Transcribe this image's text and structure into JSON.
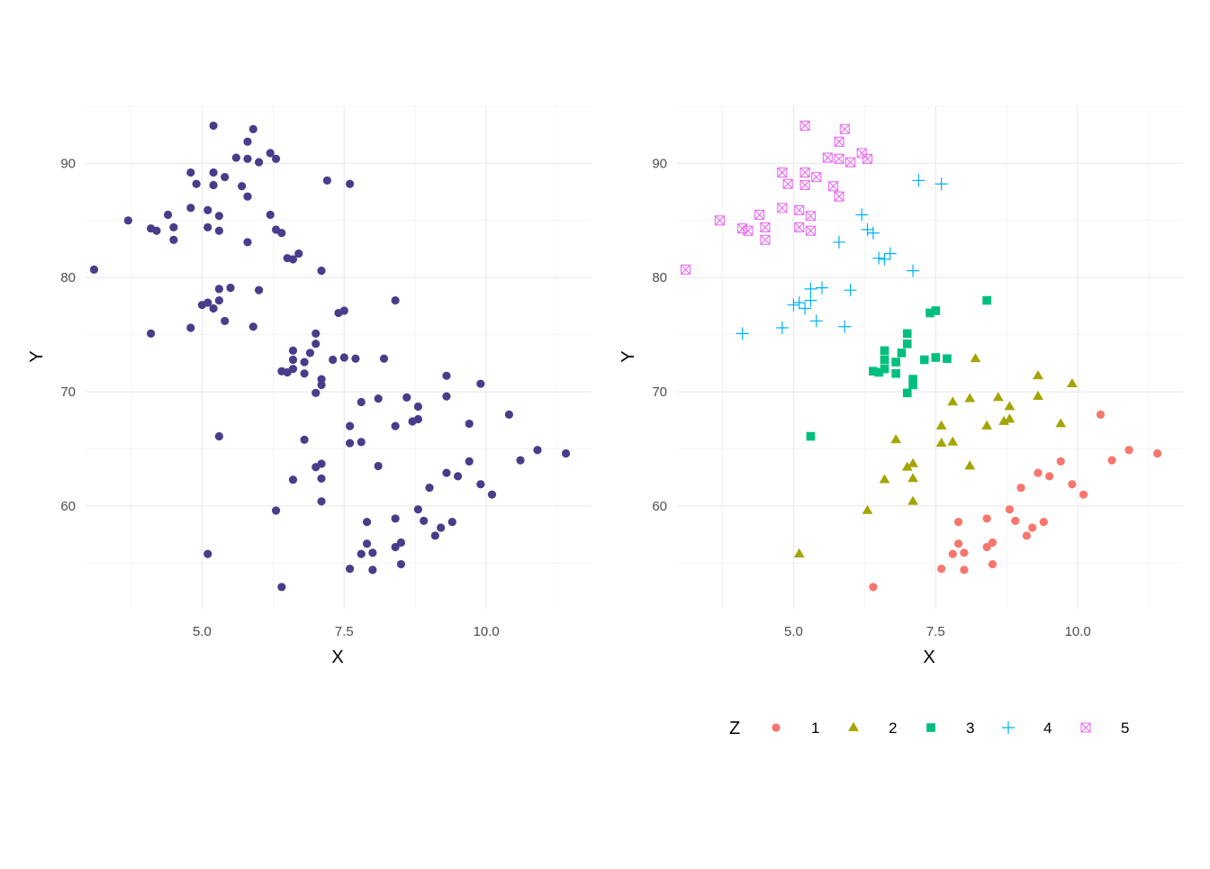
{
  "chart_data": [
    {
      "type": "scatter",
      "panel": "left",
      "xlabel": "X",
      "ylabel": "Y",
      "xlim": [
        2.95,
        11.85
      ],
      "ylim": [
        51.0,
        95.0
      ],
      "xticks": [
        5.0,
        7.5,
        10.0
      ],
      "xtick_labels": [
        "5.0",
        "7.5",
        "10.0"
      ],
      "yticks": [
        60,
        70,
        80,
        90
      ],
      "ytick_labels": [
        "60",
        "70",
        "80",
        "90"
      ],
      "grid": true,
      "point_color": "#483d8b"
    },
    {
      "type": "scatter",
      "panel": "right",
      "xlabel": "X",
      "ylabel": "Y",
      "xlim": [
        2.95,
        11.85
      ],
      "ylim": [
        51.0,
        95.0
      ],
      "xticks": [
        5.0,
        7.5,
        10.0
      ],
      "xtick_labels": [
        "5.0",
        "7.5",
        "10.0"
      ],
      "yticks": [
        60,
        70,
        80,
        90
      ],
      "ytick_labels": [
        "60",
        "70",
        "80",
        "90"
      ],
      "grid": true,
      "legend": {
        "title": "Z",
        "position": "bottom",
        "entries": [
          {
            "label": "1",
            "shape": "circle",
            "color": "#f8766d"
          },
          {
            "label": "2",
            "shape": "triangle",
            "color": "#a3a500"
          },
          {
            "label": "3",
            "shape": "square",
            "color": "#00bf7d"
          },
          {
            "label": "4",
            "shape": "plus",
            "color": "#00b0f6"
          },
          {
            "label": "5",
            "shape": "square-x",
            "color": "#e76bf3"
          }
        ]
      }
    }
  ],
  "points": [
    {
      "x": 6.4,
      "y": 52.9,
      "z": 1
    },
    {
      "x": 7.6,
      "y": 54.5,
      "z": 1
    },
    {
      "x": 8.0,
      "y": 54.4,
      "z": 1
    },
    {
      "x": 8.5,
      "y": 54.9,
      "z": 1
    },
    {
      "x": 7.8,
      "y": 55.8,
      "z": 1
    },
    {
      "x": 8.0,
      "y": 55.9,
      "z": 1
    },
    {
      "x": 7.9,
      "y": 56.7,
      "z": 1
    },
    {
      "x": 8.4,
      "y": 56.4,
      "z": 1
    },
    {
      "x": 8.5,
      "y": 56.8,
      "z": 1
    },
    {
      "x": 9.1,
      "y": 57.4,
      "z": 1
    },
    {
      "x": 9.2,
      "y": 58.1,
      "z": 1
    },
    {
      "x": 7.9,
      "y": 58.6,
      "z": 1
    },
    {
      "x": 8.9,
      "y": 58.7,
      "z": 1
    },
    {
      "x": 9.4,
      "y": 58.6,
      "z": 1
    },
    {
      "x": 8.4,
      "y": 58.9,
      "z": 1
    },
    {
      "x": 8.8,
      "y": 59.7,
      "z": 1
    },
    {
      "x": 9.0,
      "y": 61.6,
      "z": 1
    },
    {
      "x": 9.9,
      "y": 61.9,
      "z": 1
    },
    {
      "x": 10.1,
      "y": 61.0,
      "z": 1
    },
    {
      "x": 9.3,
      "y": 62.9,
      "z": 1
    },
    {
      "x": 9.5,
      "y": 62.6,
      "z": 1
    },
    {
      "x": 9.7,
      "y": 63.9,
      "z": 1
    },
    {
      "x": 10.6,
      "y": 64.0,
      "z": 1
    },
    {
      "x": 10.9,
      "y": 64.9,
      "z": 1
    },
    {
      "x": 11.4,
      "y": 64.6,
      "z": 1
    },
    {
      "x": 10.4,
      "y": 68.0,
      "z": 1
    },
    {
      "x": 5.1,
      "y": 55.8,
      "z": 2
    },
    {
      "x": 6.3,
      "y": 59.6,
      "z": 2
    },
    {
      "x": 7.1,
      "y": 60.4,
      "z": 2
    },
    {
      "x": 6.6,
      "y": 62.3,
      "z": 2
    },
    {
      "x": 7.1,
      "y": 62.4,
      "z": 2
    },
    {
      "x": 7.0,
      "y": 63.4,
      "z": 2
    },
    {
      "x": 7.1,
      "y": 63.7,
      "z": 2
    },
    {
      "x": 8.1,
      "y": 63.5,
      "z": 2
    },
    {
      "x": 6.8,
      "y": 65.8,
      "z": 2
    },
    {
      "x": 7.6,
      "y": 65.5,
      "z": 2
    },
    {
      "x": 7.8,
      "y": 65.6,
      "z": 2
    },
    {
      "x": 7.6,
      "y": 67.0,
      "z": 2
    },
    {
      "x": 8.4,
      "y": 67.0,
      "z": 2
    },
    {
      "x": 8.7,
      "y": 67.4,
      "z": 2
    },
    {
      "x": 8.8,
      "y": 67.6,
      "z": 2
    },
    {
      "x": 9.7,
      "y": 67.2,
      "z": 2
    },
    {
      "x": 7.8,
      "y": 69.1,
      "z": 2
    },
    {
      "x": 8.1,
      "y": 69.4,
      "z": 2
    },
    {
      "x": 8.6,
      "y": 69.5,
      "z": 2
    },
    {
      "x": 8.8,
      "y": 68.7,
      "z": 2
    },
    {
      "x": 9.3,
      "y": 69.6,
      "z": 2
    },
    {
      "x": 9.3,
      "y": 71.4,
      "z": 2
    },
    {
      "x": 9.9,
      "y": 70.7,
      "z": 2
    },
    {
      "x": 8.2,
      "y": 72.9,
      "z": 2
    },
    {
      "x": 5.3,
      "y": 66.1,
      "z": 3
    },
    {
      "x": 7.0,
      "y": 69.9,
      "z": 3
    },
    {
      "x": 7.1,
      "y": 70.6,
      "z": 3
    },
    {
      "x": 7.1,
      "y": 71.1,
      "z": 3
    },
    {
      "x": 6.4,
      "y": 71.8,
      "z": 3
    },
    {
      "x": 6.5,
      "y": 71.7,
      "z": 3
    },
    {
      "x": 6.6,
      "y": 72.0,
      "z": 3
    },
    {
      "x": 6.8,
      "y": 71.6,
      "z": 3
    },
    {
      "x": 6.6,
      "y": 72.8,
      "z": 3
    },
    {
      "x": 6.8,
      "y": 72.6,
      "z": 3
    },
    {
      "x": 7.3,
      "y": 72.8,
      "z": 3
    },
    {
      "x": 7.5,
      "y": 73.0,
      "z": 3
    },
    {
      "x": 7.7,
      "y": 72.9,
      "z": 3
    },
    {
      "x": 6.6,
      "y": 73.6,
      "z": 3
    },
    {
      "x": 6.9,
      "y": 73.4,
      "z": 3
    },
    {
      "x": 7.0,
      "y": 74.2,
      "z": 3
    },
    {
      "x": 7.0,
      "y": 75.1,
      "z": 3
    },
    {
      "x": 7.4,
      "y": 76.9,
      "z": 3
    },
    {
      "x": 7.5,
      "y": 77.1,
      "z": 3
    },
    {
      "x": 8.4,
      "y": 78.0,
      "z": 3
    },
    {
      "x": 4.1,
      "y": 75.1,
      "z": 4
    },
    {
      "x": 4.8,
      "y": 75.6,
      "z": 4
    },
    {
      "x": 5.4,
      "y": 76.2,
      "z": 4
    },
    {
      "x": 5.9,
      "y": 75.7,
      "z": 4
    },
    {
      "x": 5.0,
      "y": 77.6,
      "z": 4
    },
    {
      "x": 5.1,
      "y": 77.8,
      "z": 4
    },
    {
      "x": 5.2,
      "y": 77.3,
      "z": 4
    },
    {
      "x": 5.3,
      "y": 78.0,
      "z": 4
    },
    {
      "x": 5.3,
      "y": 79.0,
      "z": 4
    },
    {
      "x": 5.5,
      "y": 79.1,
      "z": 4
    },
    {
      "x": 6.0,
      "y": 78.9,
      "z": 4
    },
    {
      "x": 7.1,
      "y": 80.6,
      "z": 4
    },
    {
      "x": 5.8,
      "y": 83.1,
      "z": 4
    },
    {
      "x": 6.5,
      "y": 81.7,
      "z": 4
    },
    {
      "x": 6.6,
      "y": 81.6,
      "z": 4
    },
    {
      "x": 6.7,
      "y": 82.1,
      "z": 4
    },
    {
      "x": 6.3,
      "y": 84.2,
      "z": 4
    },
    {
      "x": 6.4,
      "y": 83.9,
      "z": 4
    },
    {
      "x": 6.2,
      "y": 85.5,
      "z": 4
    },
    {
      "x": 7.2,
      "y": 88.5,
      "z": 4
    },
    {
      "x": 7.6,
      "y": 88.2,
      "z": 4
    },
    {
      "x": 3.1,
      "y": 80.7,
      "z": 5
    },
    {
      "x": 3.7,
      "y": 85.0,
      "z": 5
    },
    {
      "x": 4.1,
      "y": 84.3,
      "z": 5
    },
    {
      "x": 4.2,
      "y": 84.1,
      "z": 5
    },
    {
      "x": 4.4,
      "y": 85.5,
      "z": 5
    },
    {
      "x": 4.5,
      "y": 84.4,
      "z": 5
    },
    {
      "x": 4.5,
      "y": 83.3,
      "z": 5
    },
    {
      "x": 4.8,
      "y": 86.1,
      "z": 5
    },
    {
      "x": 5.1,
      "y": 85.9,
      "z": 5
    },
    {
      "x": 5.3,
      "y": 85.4,
      "z": 5
    },
    {
      "x": 5.1,
      "y": 84.4,
      "z": 5
    },
    {
      "x": 5.3,
      "y": 84.1,
      "z": 5
    },
    {
      "x": 4.8,
      "y": 89.2,
      "z": 5
    },
    {
      "x": 4.9,
      "y": 88.2,
      "z": 5
    },
    {
      "x": 5.2,
      "y": 89.2,
      "z": 5
    },
    {
      "x": 5.2,
      "y": 88.1,
      "z": 5
    },
    {
      "x": 5.4,
      "y": 88.8,
      "z": 5
    },
    {
      "x": 5.7,
      "y": 88.0,
      "z": 5
    },
    {
      "x": 5.8,
      "y": 87.1,
      "z": 5
    },
    {
      "x": 5.6,
      "y": 90.5,
      "z": 5
    },
    {
      "x": 5.8,
      "y": 90.4,
      "z": 5
    },
    {
      "x": 6.0,
      "y": 90.1,
      "z": 5
    },
    {
      "x": 6.2,
      "y": 90.9,
      "z": 5
    },
    {
      "x": 6.3,
      "y": 90.4,
      "z": 5
    },
    {
      "x": 5.8,
      "y": 91.9,
      "z": 5
    },
    {
      "x": 5.9,
      "y": 93.0,
      "z": 5
    },
    {
      "x": 5.2,
      "y": 93.3,
      "z": 5
    }
  ]
}
